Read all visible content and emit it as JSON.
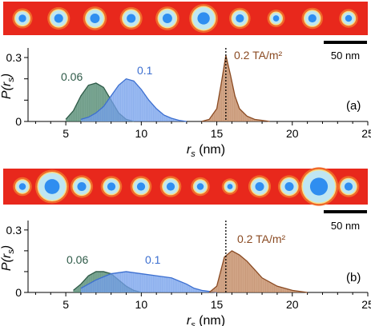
{
  "chart_data": [
    {
      "type": "area",
      "panel_label": "(a)",
      "xlabel": "r_s (nm)",
      "ylabel": "P(r_s)",
      "xlim": [
        2.5,
        25
      ],
      "ylim": [
        0,
        0.33
      ],
      "xticks": [
        5,
        10,
        15,
        20,
        25
      ],
      "yticks": [
        0,
        0.1,
        0.2,
        0.3
      ],
      "ytick_labels": [
        "0",
        "",
        "",
        "0.3"
      ],
      "marker_line_x": 15.6,
      "scale_bar_label": "50 nm",
      "series": [
        {
          "name": "0.06",
          "color": "#4f8a70",
          "line_color": "#2e5a48",
          "x": [
            5.0,
            5.5,
            6.0,
            6.5,
            7.0,
            7.5,
            8.0,
            8.5,
            9.0,
            9.5
          ],
          "y": [
            0.01,
            0.05,
            0.12,
            0.17,
            0.18,
            0.16,
            0.1,
            0.04,
            0.01,
            0.0
          ]
        },
        {
          "name": "0.1",
          "color": "#7aa4ee",
          "line_color": "#3c6fd0",
          "x": [
            6.0,
            6.5,
            7.0,
            7.5,
            8.0,
            8.5,
            9.0,
            9.5,
            10.0,
            10.5,
            11.0,
            11.5,
            12.0,
            12.5,
            13.0
          ],
          "y": [
            0.01,
            0.02,
            0.04,
            0.07,
            0.12,
            0.17,
            0.2,
            0.19,
            0.15,
            0.1,
            0.06,
            0.03,
            0.015,
            0.005,
            0.0
          ]
        },
        {
          "name": "0.2 TA/m²",
          "color": "#c48a62",
          "line_color": "#8a4a22",
          "x": [
            14.0,
            14.5,
            15.0,
            15.3,
            15.6,
            15.9,
            16.2,
            16.5,
            17.0,
            17.5,
            18.0,
            18.5
          ],
          "y": [
            0.0,
            0.01,
            0.06,
            0.18,
            0.31,
            0.22,
            0.12,
            0.06,
            0.025,
            0.01,
            0.005,
            0.0
          ]
        }
      ],
      "circle_radii_nm": [
        5.5,
        6.5,
        7,
        6.5,
        7,
        9,
        6,
        4.5,
        6,
        5
      ]
    },
    {
      "type": "area",
      "panel_label": "(b)",
      "xlabel": "r_s (nm)",
      "ylabel": "P(r_s)",
      "xlim": [
        2.5,
        25
      ],
      "ylim": [
        0,
        0.33
      ],
      "xticks": [
        5,
        10,
        15,
        20,
        25
      ],
      "yticks": [
        0,
        0.1,
        0.2,
        0.3
      ],
      "ytick_labels": [
        "0",
        "",
        "",
        "0.3"
      ],
      "marker_line_x": 15.6,
      "scale_bar_label": "50 nm",
      "series": [
        {
          "name": "0.06",
          "color": "#4f8a70",
          "line_color": "#2e5a48",
          "x": [
            5.5,
            6.0,
            6.5,
            7.0,
            7.5,
            8.0,
            8.5,
            9.0,
            9.5,
            10.0
          ],
          "y": [
            0.01,
            0.04,
            0.08,
            0.1,
            0.1,
            0.09,
            0.06,
            0.03,
            0.01,
            0.0
          ]
        },
        {
          "name": "0.1",
          "color": "#7aa4ee",
          "line_color": "#3c6fd0",
          "x": [
            6.0,
            7.0,
            8.0,
            9.0,
            10.0,
            11.0,
            12.0,
            13.0,
            13.5,
            14.0,
            15.0
          ],
          "y": [
            0.02,
            0.06,
            0.09,
            0.1,
            0.09,
            0.08,
            0.07,
            0.04,
            0.02,
            0.01,
            0.0
          ]
        },
        {
          "name": "0.2 TA/m²",
          "color": "#c48a62",
          "line_color": "#8a4a22",
          "x": [
            14.5,
            15.0,
            15.5,
            16.0,
            16.5,
            17.0,
            17.5,
            18.0,
            19.0,
            20.0,
            21.0
          ],
          "y": [
            0.0,
            0.03,
            0.17,
            0.2,
            0.18,
            0.15,
            0.11,
            0.07,
            0.03,
            0.01,
            0.0
          ]
        }
      ],
      "circle_radii_nm": [
        5,
        11,
        6.5,
        6,
        6,
        6,
        5,
        4,
        6.5,
        6.5,
        13,
        6
      ]
    }
  ]
}
